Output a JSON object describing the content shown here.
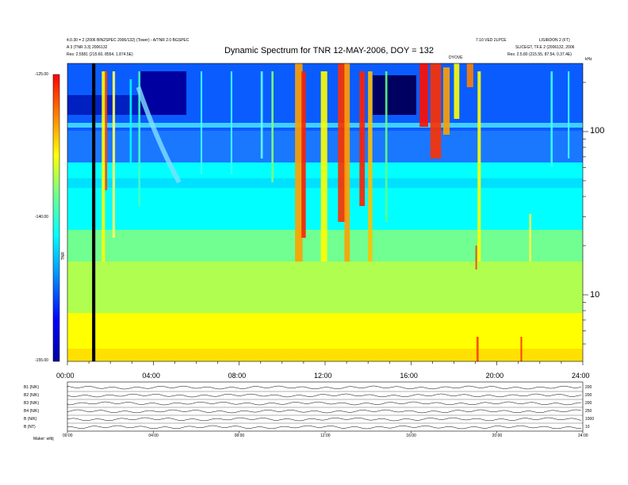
{
  "header": {
    "left_line1": "4.0.30 = 2 (2006 BIN2SPEC 2006/132) (Tower) - A/TNR 2.0 BGSPEC",
    "left_line2": "A 3 (TNR 3.3) 2006132",
    "left_line3": "Res: 2.5581 (215.60, 8554, 1.874.5E)",
    "right_line1": "7.10 VED 2LPCE",
    "right_line2": "LISIRDON 2 (FT)",
    "right_line3": "SLICEGT, TF.E 2 (2006132, 2006",
    "right_line4": "Res: 2.5.80 (215.55, 87.54, 0.37.4E)",
    "right_unit": "kHz",
    "mid_label": "DYOVE"
  },
  "chart_data": {
    "type": "heatmap",
    "title": "Dynamic Spectrum for TNR 12-MAY-2006, DOY = 132",
    "x_tick_labels": [
      "00:00",
      "04:00",
      "08:00",
      "12:00",
      "16:00",
      "20:00",
      "24:00"
    ],
    "x_range_hours": [
      0,
      24
    ],
    "y_scale": "log",
    "y_tick_labels": [
      "100",
      "10"
    ],
    "y_unit": "kHz",
    "colorbar": {
      "label": "TNR",
      "tick_labels": [
        "-125.00",
        "-140.00",
        "-155.00"
      ],
      "range": [
        -155,
        -125
      ],
      "colors": [
        "#0000ff",
        "#0090ff",
        "#00ffff",
        "#70ff90",
        "#ffff00",
        "#ff8000",
        "#ff0000"
      ]
    },
    "data_gap_hours": [
      1.15,
      1.3
    ]
  },
  "bottom_panels": {
    "rows": [
      {
        "label": "B1 (N/K)",
        "right": "200"
      },
      {
        "label": "B2 (N/K)",
        "right": "200"
      },
      {
        "label": "B3 (N/K)",
        "right": "200"
      },
      {
        "label": "B4 (N/K)",
        "right": "250"
      },
      {
        "label": "B (N/K)",
        "right": "1000"
      },
      {
        "label": "B (NT)",
        "right": "10"
      }
    ],
    "x_tick_labels": [
      "00:00",
      "04:00",
      "08:00",
      "12:00",
      "16:00",
      "20:00",
      "24:00"
    ],
    "footer": "Maker: wfdj"
  }
}
